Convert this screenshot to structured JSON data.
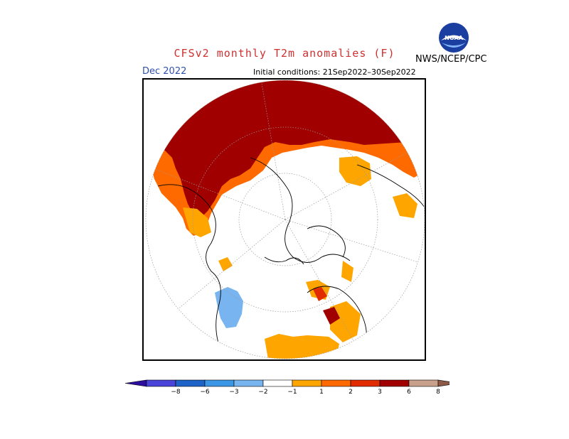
{
  "header": {
    "title": "CFSv2 monthly T2m anomalies (F)",
    "organization": "NWS/NCEP/CPC",
    "logo_text": "NOAA",
    "month": "Dec 2022",
    "initial_conditions": "Initial conditions: 21Sep2022–30Sep2022"
  },
  "colors": {
    "title": "#d03030",
    "month": "#3050b0",
    "logo_ring": "#1a3fa0",
    "logo_center": "#ffffff",
    "bins": [
      "#2d0fa0",
      "#4b44d8",
      "#1e64c8",
      "#3c96e6",
      "#78b4f0",
      "#ffffff",
      "#ffa500",
      "#ff6a00",
      "#e02c00",
      "#a00000",
      "#c8a08c",
      "#8c5a46"
    ]
  },
  "legend": {
    "tick_labels": [
      "−8",
      "−6",
      "−3",
      "−2",
      "−1",
      "1",
      "2",
      "3",
      "6",
      "8"
    ]
  }
}
